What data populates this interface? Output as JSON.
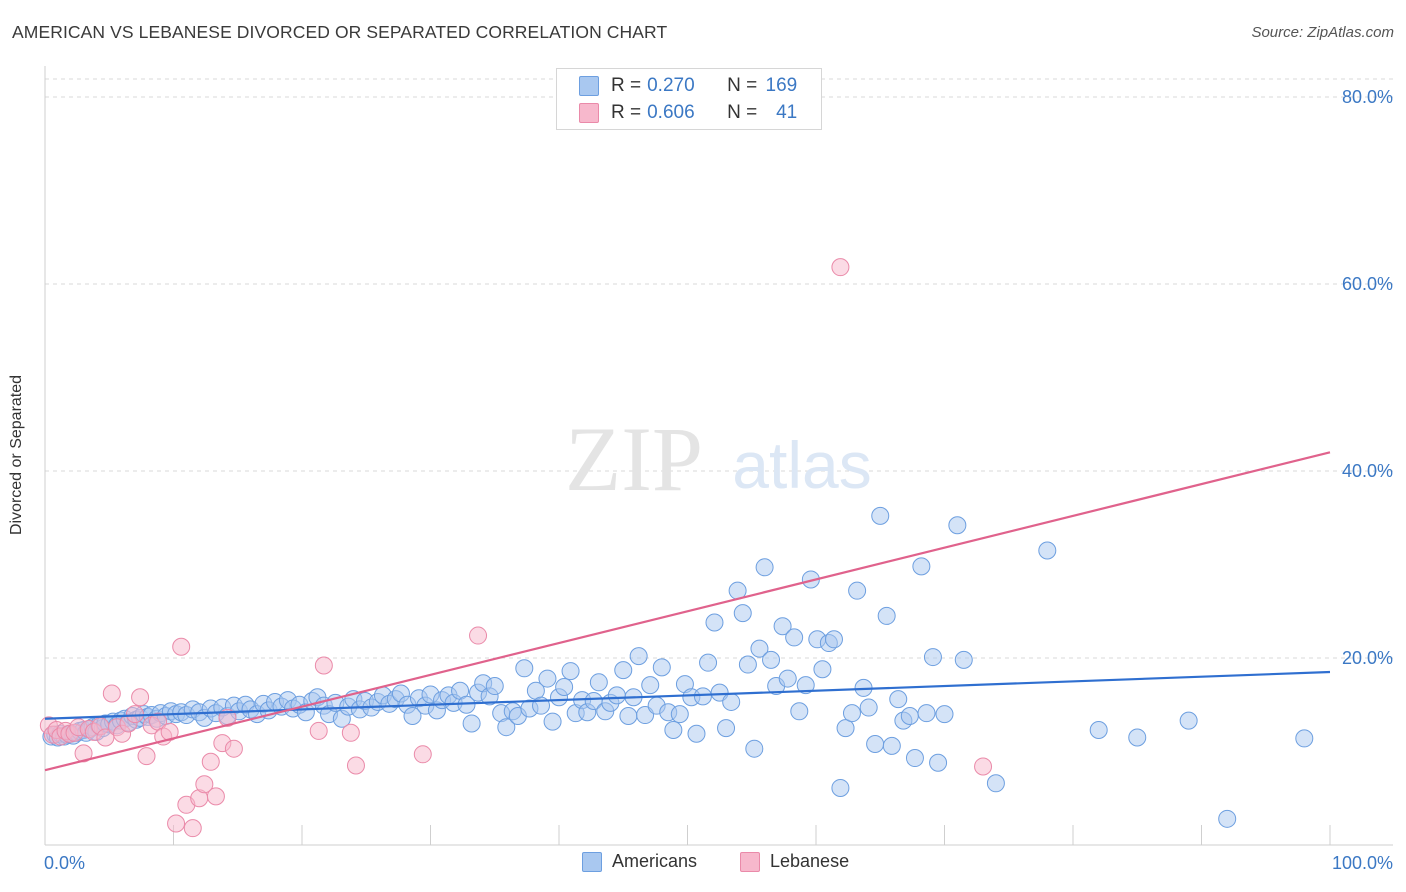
{
  "header": {
    "title": "AMERICAN VS LEBANESE DIVORCED OR SEPARATED CORRELATION CHART",
    "source": "Source: ZipAtlas.com"
  },
  "watermark": {
    "zip": "ZIP",
    "atlas": "atlas"
  },
  "legend": {
    "americans": {
      "r_key": "R = ",
      "r_value": "0.270",
      "n_key": "N = ",
      "n_value": "169"
    },
    "lebanese": {
      "r_key": "R = ",
      "r_value": "0.606",
      "n_key": "N = ",
      "n_value": "41"
    }
  },
  "bottom_legend": {
    "americans": "Americans",
    "lebanese": "Lebanese"
  },
  "colors": {
    "americans_fill": "#a9c8f0",
    "americans_stroke": "#6d9fe0",
    "americans_line": "#2f6fd0",
    "lebanese_fill": "#f7b8cc",
    "lebanese_stroke": "#ea8aa9",
    "lebanese_line": "#e0628c",
    "tick_label": "#3b78c4",
    "grid": "#d8d8d8"
  },
  "chart_data": {
    "type": "scatter",
    "title": "AMERICAN VS LEBANESE DIVORCED OR SEPARATED CORRELATION CHART",
    "xlabel": "",
    "ylabel": "Divorced or Separated",
    "xlim": [
      0,
      100
    ],
    "ylim": [
      0,
      80
    ],
    "x_tick_labels": [
      "0.0%",
      "100.0%"
    ],
    "y_ticks": [
      20,
      40,
      60,
      80
    ],
    "y_tick_labels": [
      "20.0%",
      "40.0%",
      "60.0%",
      "80.0%"
    ],
    "grid": "horizontal dashed",
    "legend_position": "top-center",
    "series": [
      {
        "name": "Americans",
        "r": 0.27,
        "n": 169,
        "trend": [
          [
            0,
            13.5
          ],
          [
            100,
            18.5
          ]
        ],
        "points": [
          [
            0.5,
            11.6
          ],
          [
            0.8,
            11.8
          ],
          [
            1.0,
            11.5
          ],
          [
            1.2,
            11.9
          ],
          [
            1.5,
            11.6
          ],
          [
            1.7,
            11.8
          ],
          [
            2.0,
            11.9
          ],
          [
            2.2,
            11.7
          ],
          [
            2.5,
            12.0
          ],
          [
            2.7,
            12.2
          ],
          [
            3.0,
            12.3
          ],
          [
            3.2,
            12.0
          ],
          [
            3.5,
            12.4
          ],
          [
            3.7,
            12.6
          ],
          [
            4.0,
            12.1
          ],
          [
            4.2,
            12.8
          ],
          [
            4.5,
            12.5
          ],
          [
            4.7,
            13.0
          ],
          [
            5.0,
            12.9
          ],
          [
            5.3,
            13.2
          ],
          [
            5.6,
            12.8
          ],
          [
            5.9,
            13.3
          ],
          [
            6.2,
            13.5
          ],
          [
            6.5,
            13.1
          ],
          [
            6.8,
            13.8
          ],
          [
            7.1,
            13.4
          ],
          [
            7.4,
            13.6
          ],
          [
            7.7,
            14.0
          ],
          [
            8.0,
            13.7
          ],
          [
            8.3,
            13.9
          ],
          [
            8.7,
            13.5
          ],
          [
            9.0,
            14.1
          ],
          [
            9.4,
            13.8
          ],
          [
            9.8,
            14.3
          ],
          [
            10.2,
            14.0
          ],
          [
            10.6,
            14.2
          ],
          [
            11.0,
            13.9
          ],
          [
            11.5,
            14.5
          ],
          [
            12.0,
            14.2
          ],
          [
            12.4,
            13.6
          ],
          [
            12.9,
            14.6
          ],
          [
            13.3,
            14.1
          ],
          [
            13.8,
            14.7
          ],
          [
            14.2,
            13.8
          ],
          [
            14.7,
            14.9
          ],
          [
            15.1,
            14.3
          ],
          [
            15.6,
            15.0
          ],
          [
            16.0,
            14.5
          ],
          [
            16.5,
            14.0
          ],
          [
            17.0,
            15.1
          ],
          [
            17.4,
            14.4
          ],
          [
            17.9,
            15.3
          ],
          [
            18.4,
            14.8
          ],
          [
            18.9,
            15.5
          ],
          [
            19.3,
            14.6
          ],
          [
            19.8,
            15.0
          ],
          [
            20.3,
            14.2
          ],
          [
            20.8,
            15.4
          ],
          [
            21.2,
            15.8
          ],
          [
            21.7,
            14.9
          ],
          [
            22.1,
            14.0
          ],
          [
            22.6,
            15.2
          ],
          [
            23.1,
            13.5
          ],
          [
            23.6,
            14.8
          ],
          [
            24.0,
            15.6
          ],
          [
            24.5,
            14.5
          ],
          [
            24.9,
            15.4
          ],
          [
            25.4,
            14.7
          ],
          [
            25.9,
            15.3
          ],
          [
            26.3,
            16.0
          ],
          [
            26.8,
            15.1
          ],
          [
            27.3,
            15.6
          ],
          [
            27.7,
            16.2
          ],
          [
            28.2,
            15.0
          ],
          [
            28.6,
            13.8
          ],
          [
            29.1,
            15.7
          ],
          [
            29.6,
            14.9
          ],
          [
            30.0,
            16.1
          ],
          [
            30.5,
            14.4
          ],
          [
            30.9,
            15.5
          ],
          [
            31.4,
            16.0
          ],
          [
            31.8,
            15.2
          ],
          [
            32.3,
            16.5
          ],
          [
            32.8,
            15.0
          ],
          [
            33.2,
            13.0
          ],
          [
            33.7,
            16.3
          ],
          [
            34.1,
            17.3
          ],
          [
            34.6,
            15.9
          ],
          [
            35.0,
            17.0
          ],
          [
            35.5,
            14.1
          ],
          [
            35.9,
            12.6
          ],
          [
            36.4,
            14.3
          ],
          [
            36.8,
            13.8
          ],
          [
            37.3,
            18.9
          ],
          [
            37.7,
            14.6
          ],
          [
            38.2,
            16.5
          ],
          [
            38.6,
            14.9
          ],
          [
            39.1,
            17.8
          ],
          [
            39.5,
            13.2
          ],
          [
            40.0,
            15.8
          ],
          [
            40.4,
            16.9
          ],
          [
            40.9,
            18.6
          ],
          [
            41.3,
            14.1
          ],
          [
            41.8,
            15.5
          ],
          [
            42.2,
            14.2
          ],
          [
            42.7,
            15.4
          ],
          [
            43.1,
            17.4
          ],
          [
            43.6,
            14.3
          ],
          [
            44.0,
            15.2
          ],
          [
            44.5,
            16.0
          ],
          [
            45.0,
            18.7
          ],
          [
            45.4,
            13.8
          ],
          [
            45.8,
            15.8
          ],
          [
            46.2,
            20.2
          ],
          [
            46.7,
            13.9
          ],
          [
            47.1,
            17.1
          ],
          [
            47.6,
            14.9
          ],
          [
            48.0,
            19.0
          ],
          [
            48.5,
            14.2
          ],
          [
            48.9,
            12.3
          ],
          [
            49.4,
            14.0
          ],
          [
            49.8,
            17.2
          ],
          [
            50.3,
            15.8
          ],
          [
            50.7,
            11.9
          ],
          [
            51.2,
            15.9
          ],
          [
            51.6,
            19.5
          ],
          [
            52.1,
            23.8
          ],
          [
            52.5,
            16.3
          ],
          [
            53.0,
            12.5
          ],
          [
            53.4,
            15.3
          ],
          [
            53.9,
            27.2
          ],
          [
            54.3,
            24.8
          ],
          [
            54.7,
            19.3
          ],
          [
            55.2,
            10.3
          ],
          [
            55.6,
            21.0
          ],
          [
            56.0,
            29.7
          ],
          [
            56.5,
            19.8
          ],
          [
            56.9,
            17.0
          ],
          [
            57.4,
            23.4
          ],
          [
            57.8,
            17.8
          ],
          [
            58.3,
            22.2
          ],
          [
            58.7,
            14.3
          ],
          [
            59.2,
            17.1
          ],
          [
            59.6,
            28.4
          ],
          [
            60.1,
            22.0
          ],
          [
            60.5,
            18.8
          ],
          [
            61.0,
            21.6
          ],
          [
            61.4,
            22.0
          ],
          [
            61.9,
            6.1
          ],
          [
            62.3,
            12.5
          ],
          [
            62.8,
            14.1
          ],
          [
            63.2,
            27.2
          ],
          [
            63.7,
            16.8
          ],
          [
            64.1,
            14.7
          ],
          [
            64.6,
            10.8
          ],
          [
            65.0,
            35.2
          ],
          [
            65.5,
            24.5
          ],
          [
            65.9,
            10.6
          ],
          [
            66.4,
            15.6
          ],
          [
            66.8,
            13.3
          ],
          [
            67.3,
            13.8
          ],
          [
            67.7,
            9.3
          ],
          [
            68.2,
            29.8
          ],
          [
            68.6,
            14.1
          ],
          [
            69.1,
            20.1
          ],
          [
            69.5,
            8.8
          ],
          [
            70.0,
            14.0
          ],
          [
            71.0,
            34.2
          ],
          [
            71.5,
            19.8
          ],
          [
            74.0,
            6.6
          ],
          [
            78.0,
            31.5
          ],
          [
            82.0,
            12.3
          ],
          [
            85.0,
            11.5
          ],
          [
            89.0,
            13.3
          ],
          [
            92.0,
            2.8
          ],
          [
            98.0,
            11.4
          ]
        ]
      },
      {
        "name": "Lebanese",
        "r": 0.606,
        "n": 41,
        "trend": [
          [
            0,
            8.0
          ],
          [
            100,
            42.0
          ]
        ],
        "points": [
          [
            0.3,
            12.8
          ],
          [
            0.6,
            11.8
          ],
          [
            0.9,
            12.3
          ],
          [
            1.2,
            11.6
          ],
          [
            1.6,
            12.2
          ],
          [
            1.9,
            11.9
          ],
          [
            2.3,
            12.0
          ],
          [
            2.6,
            12.6
          ],
          [
            3.0,
            9.8
          ],
          [
            3.4,
            12.4
          ],
          [
            3.8,
            12.1
          ],
          [
            4.3,
            12.7
          ],
          [
            4.7,
            11.5
          ],
          [
            5.2,
            16.2
          ],
          [
            5.6,
            12.6
          ],
          [
            6.0,
            11.9
          ],
          [
            6.5,
            13.0
          ],
          [
            7.0,
            14.0
          ],
          [
            7.4,
            15.8
          ],
          [
            7.9,
            9.5
          ],
          [
            8.3,
            12.8
          ],
          [
            8.8,
            13.2
          ],
          [
            9.2,
            11.6
          ],
          [
            9.7,
            12.1
          ],
          [
            10.2,
            2.3
          ],
          [
            10.6,
            21.2
          ],
          [
            11.0,
            4.3
          ],
          [
            11.5,
            1.8
          ],
          [
            12.0,
            5.0
          ],
          [
            12.4,
            6.5
          ],
          [
            12.9,
            8.9
          ],
          [
            13.3,
            5.2
          ],
          [
            13.8,
            10.9
          ],
          [
            14.2,
            13.6
          ],
          [
            14.7,
            10.3
          ],
          [
            21.3,
            12.2
          ],
          [
            21.7,
            19.2
          ],
          [
            23.8,
            12.0
          ],
          [
            24.2,
            8.5
          ],
          [
            29.4,
            9.7
          ],
          [
            33.7,
            22.4
          ],
          [
            61.9,
            61.8
          ],
          [
            73.0,
            8.4
          ]
        ]
      }
    ]
  }
}
